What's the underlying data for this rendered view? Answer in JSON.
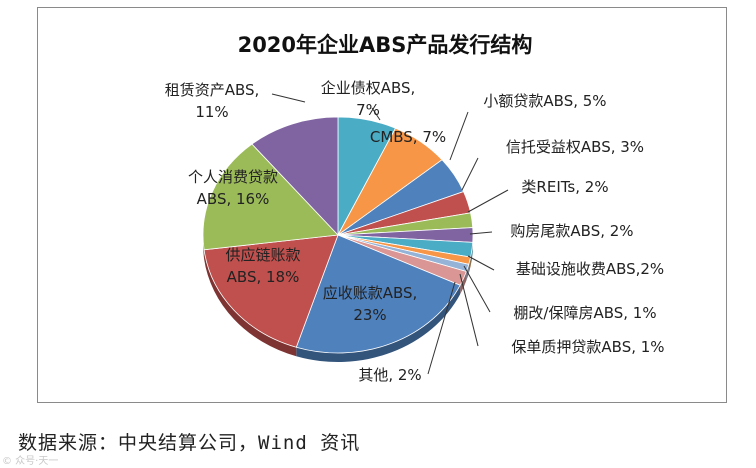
{
  "chart_data": {
    "type": "pie",
    "title": "2020年企业ABS产品发行结构",
    "slices": [
      {
        "name": "企业债权ABS",
        "value": 7,
        "color": "#4bacc6",
        "label_lines": [
          "企业债权ABS,",
          "7%"
        ]
      },
      {
        "name": "CMBS",
        "value": 7,
        "color": "#f79646",
        "label_lines": [
          "CMBS, 7%"
        ]
      },
      {
        "name": "小额贷款ABS",
        "value": 5,
        "color": "#4f81bd",
        "label_lines": [
          "小额贷款ABS, 5%"
        ]
      },
      {
        "name": "信托受益权ABS",
        "value": 3,
        "color": "#c0504d",
        "label_lines": [
          "信托受益权ABS, 3%"
        ]
      },
      {
        "name": "类REITs",
        "value": 2,
        "color": "#9bbb59",
        "label_lines": [
          "类REITs, 2%"
        ]
      },
      {
        "name": "购房尾款ABS",
        "value": 2,
        "color": "#8064a2",
        "label_lines": [
          "购房尾款ABS, 2%"
        ]
      },
      {
        "name": "基础设施收费ABS",
        "value": 2,
        "color": "#4bacc6",
        "label_lines": [
          "基础设施收费ABS,2%"
        ]
      },
      {
        "name": "棚改/保障房ABS",
        "value": 1,
        "color": "#f79646",
        "label_lines": [
          "棚改/保障房ABS, 1%"
        ]
      },
      {
        "name": "保单质押贷款ABS",
        "value": 1,
        "color": "#95b3d7",
        "label_lines": [
          "保单质押贷款ABS, 1%"
        ]
      },
      {
        "name": "其他",
        "value": 2,
        "color": "#d99694",
        "label_lines": [
          "其他, 2%"
        ]
      },
      {
        "name": "应收账款ABS",
        "value": 23,
        "color": "#4f81bd",
        "label_lines": [
          "应收账款ABS,",
          "23%"
        ]
      },
      {
        "name": "供应链账款",
        "value": 18,
        "color": "#c0504d",
        "label_lines": [
          "供应链账款",
          "ABS, 18%"
        ]
      },
      {
        "name": "个人消费贷款",
        "value": 16,
        "color": "#9bbb59",
        "label_lines": [
          "个人消费贷款",
          "ABS, 16%"
        ]
      },
      {
        "name": "租赁资产ABS",
        "value": 11,
        "color": "#8064a2",
        "label_lines": [
          "租赁资产ABS,",
          "11%"
        ]
      }
    ]
  },
  "source_text": "数据来源：中央结算公司，Wind 资讯",
  "watermark_text": "© 众号·天一"
}
